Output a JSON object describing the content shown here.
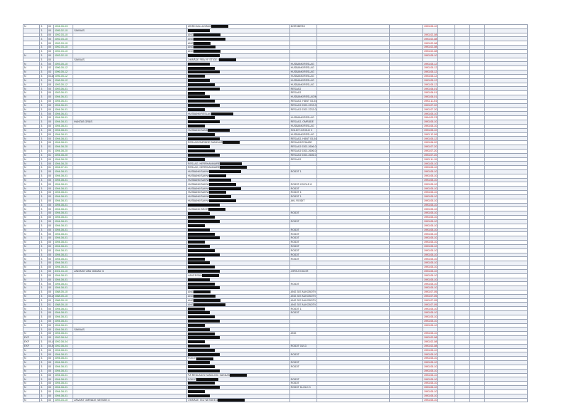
{
  "rows": [
    {
      "kind": "N",
      "ref": "3",
      "sub": "00",
      "date": "1994-05-03",
      "text": "",
      "owner": "MÖRKHÄLLA/SÄNG",
      "tail": "BORSBERG",
      "done": "1993-05-10"
    },
    {
      "kind": "",
      "ref": "3",
      "sub": "00",
      "date": "1995-02-10",
      "text": "SAKNAS",
      "owner": "",
      "tail": "",
      "done": ""
    },
    {
      "kind": "",
      "ref": "3",
      "sub": "00",
      "date": "1992-03-10",
      "text": "",
      "owner": "ANG",
      "tail": "",
      "done": "1993-02-08"
    },
    {
      "kind": "",
      "ref": "3",
      "sub": "00",
      "date": "1992-03-10",
      "text": "",
      "owner": "ANG",
      "tail": "",
      "done": "1993-02-08"
    },
    {
      "kind": "",
      "ref": "3",
      "sub": "00",
      "date": "1992-03-10",
      "text": "",
      "owner": "ANG",
      "tail": "",
      "done": "1993-02-08"
    },
    {
      "kind": "",
      "ref": "3",
      "sub": "00",
      "date": "1992-03-10",
      "text": "",
      "owner": "ANG",
      "tail": "",
      "done": "1993-02-08"
    },
    {
      "kind": "",
      "ref": "3",
      "sub": "00",
      "date": "1992-03-10",
      "text": "",
      "owner": "ANG",
      "tail": "",
      "done": "1993-02-08"
    },
    {
      "kind": "N",
      "ref": "3",
      "sub": "00",
      "date": "1993-02-10",
      "text": "",
      "owner": "",
      "tail": "",
      "done": "1993-05-10"
    },
    {
      "kind": "",
      "ref": "3",
      "sub": "00",
      "date": "",
      "text": "SAKNAS",
      "owner": "OMRÅDE FRA VF STIGE 4",
      "tail": "",
      "done": ""
    },
    {
      "kind": "N",
      "ref": "3",
      "sub": "00",
      "date": "1993-05-10",
      "text": "",
      "owner": "",
      "tail": "HUSBANK/RESLAG",
      "done": "1993-05-12"
    },
    {
      "kind": "N",
      "ref": "3",
      "sub": "03",
      "date": "1996-05-12",
      "text": "",
      "owner": "",
      "tail": "HUSBANK/RESLAG",
      "done": "1993-05-12"
    },
    {
      "kind": "N",
      "ref": "3",
      "sub": "03",
      "date": "1996-05-12",
      "text": "",
      "owner": "",
      "tail": "HUSBANK/RESLAG",
      "done": "1993-05-12"
    },
    {
      "kind": "N",
      "ref": "3",
      "sub": "03-8",
      "date": "1996-05-12",
      "text": "",
      "owner": "",
      "tail": "HUSBANK/RESLAG",
      "done": "1993-05-12"
    },
    {
      "kind": "N",
      "ref": "3",
      "sub": "04",
      "date": "1996-05-12",
      "text": "",
      "owner": "",
      "tail": "HUSBANK/RESLAG",
      "done": "1993-05-12"
    },
    {
      "kind": "N",
      "ref": "3",
      "sub": "05",
      "date": "1993-05-12",
      "text": "",
      "owner": "",
      "tail": "HUSBANK/RESLAG",
      "done": "1993-05-12"
    },
    {
      "kind": "N",
      "ref": "3",
      "sub": "00",
      "date": "1993-06-01",
      "text": "",
      "owner": "",
      "tail": "RESLAG",
      "done": "1993-06-01"
    },
    {
      "kind": "N",
      "ref": "3",
      "sub": "00",
      "date": "1993-06-01",
      "text": "",
      "owner": "",
      "tail": "RESLAG",
      "done": "1993-06-01"
    },
    {
      "kind": "N",
      "ref": "3",
      "sub": "00",
      "date": "1994-06-01",
      "text": "",
      "owner": "",
      "tail": "HUSBANK/RESLAG/MÅSTER",
      "done": "1993-06-01"
    },
    {
      "kind": "N",
      "ref": "3",
      "sub": "00",
      "date": "1994-06-01",
      "text": "",
      "owner": "",
      "tail": "RESLAG, HÄNT 03-04-08",
      "done": "1993-11-04"
    },
    {
      "kind": "N",
      "ref": "3",
      "sub": "00",
      "date": "1994-06-01",
      "text": "",
      "owner": "",
      "tail": "RESLAG 0303-2233-03-P2-1",
      "done": "1993-07-20"
    },
    {
      "kind": "N",
      "ref": "3",
      "sub": "00",
      "date": "1994-06-01",
      "text": "",
      "owner": "",
      "tail": "RESLAG 0303-2233-03-P2-1",
      "done": "1993-07-20"
    },
    {
      "kind": "N",
      "ref": "3",
      "sub": "00",
      "date": "1994-06-01",
      "text": "",
      "owner": "HUSBANK/RESLAG",
      "tail": "",
      "done": "1993-05-10"
    },
    {
      "kind": "N",
      "ref": "3",
      "sub": "00",
      "date": "1994-08-01",
      "text": "",
      "owner": "",
      "tail": "HUSBANK/RESLAG",
      "done": "1994-03-23"
    },
    {
      "kind": "N",
      "ref": "3",
      "sub": "00",
      "date": "1994-08-01",
      "text": "HANTAS GRÄS",
      "owner": "",
      "tail": "RESLAG, OMRÅDE",
      "done": "1993-05-10"
    },
    {
      "kind": "N",
      "ref": "3",
      "sub": "00",
      "date": "1994-08-01",
      "text": "",
      "owner": "",
      "tail": "HUSBANK/RESLAG",
      "done": "1993-05-10"
    },
    {
      "kind": "N",
      "ref": "3",
      "sub": "00",
      "date": "1994-08-01",
      "text": "",
      "owner": "HUSBANK/SANK",
      "tail": "SOLDIT-C/KOLD 3",
      "done": "1993-05-10"
    },
    {
      "kind": "N",
      "ref": "3",
      "sub": "00",
      "date": "1994-08-01",
      "text": "",
      "owner": "",
      "tail": "HUSBANK/RESLAG",
      "done": "1993-12-09"
    },
    {
      "kind": "N",
      "ref": "3",
      "sub": "00",
      "date": "1994-08-01",
      "text": "",
      "owner": "",
      "tail": "RESLAG, HÄNT 03-04-08",
      "done": "1993-05-12"
    },
    {
      "kind": "N",
      "ref": "3",
      "sub": "00",
      "date": "1994-08-01",
      "text": "",
      "owner": "RESLAG/OMRÅDE SANKVAR",
      "tail": "RESLAG/STANGE",
      "done": "1993-06-20"
    },
    {
      "kind": "N",
      "ref": "3",
      "sub": "01",
      "date": "1994-08-20",
      "text": "",
      "owner": "",
      "tail": "RESLAG 0303-2606-03-P2-1",
      "done": "1993-07-20"
    },
    {
      "kind": "N",
      "ref": "3",
      "sub": "01",
      "date": "1994-08-20",
      "text": "",
      "owner": "",
      "tail": "RESLAG 0303-2606-03-P2-1",
      "done": "1993-07-20"
    },
    {
      "kind": "N",
      "ref": "3",
      "sub": "01",
      "date": "1994-08-20",
      "text": "",
      "owner": "",
      "tail": "RESLAG 0303-2606-03-P2-1",
      "done": "1993-07-20"
    },
    {
      "kind": "N",
      "ref": "3",
      "sub": "00",
      "date": "1994-08-20",
      "text": "",
      "owner": "",
      "tail": "RESLAG",
      "done": "1993-11-10"
    },
    {
      "kind": "N",
      "ref": "3",
      "sub": "00",
      "date": "1994-08-20",
      "text": "",
      "owner": "RESLAG, HERRHAMMARE",
      "tail": "",
      "done": "1993-05-10"
    },
    {
      "kind": "N",
      "ref": "3",
      "sub": "01",
      "date": "1994-07-01",
      "text": "",
      "owner": "RESLAG, HERRHAMMARE",
      "tail": "",
      "done": "1993-05-10"
    },
    {
      "kind": "N",
      "ref": "3",
      "sub": "00",
      "date": "1994-08-01",
      "text": "",
      "owner": "HUSBANK/SAKNA",
      "tail": "ROIDIT 1",
      "done": "1993-05-10"
    },
    {
      "kind": "N",
      "ref": "3",
      "sub": "00",
      "date": "1994-08-01",
      "text": "",
      "owner": "HUSBANK/SAKNA",
      "tail": "",
      "done": "1993-05-10"
    },
    {
      "kind": "N",
      "ref": "3",
      "sub": "00",
      "date": "1994-08-01",
      "text": "",
      "owner": "HUSBANK/SAKNA",
      "tail": "",
      "done": "1993-05-10"
    },
    {
      "kind": "N",
      "ref": "3",
      "sub": "00",
      "date": "1994-08-01",
      "text": "",
      "owner": "HUSBANK/SAKNA",
      "tail": "ROIDIT-C/KOLD 8",
      "done": "1993-05-10"
    },
    {
      "kind": "N",
      "ref": "3",
      "sub": "00",
      "date": "1994-08-01",
      "text": "",
      "owner": "HUSBANK/SAKNA",
      "tail": "ROIDIT",
      "done": "1993-05-10"
    },
    {
      "kind": "N",
      "ref": "3",
      "sub": "00",
      "date": "1994-08-01",
      "text": "",
      "owner": "HUSBANK/SAKNA",
      "tail": "ROIDIT 1",
      "done": "1993-05-10"
    },
    {
      "kind": "N",
      "ref": "3",
      "sub": "00",
      "date": "1994-08-01",
      "text": "",
      "owner": "HUSBANK/SAKNA",
      "tail": "ROIDIT 1",
      "done": "1993-05-10"
    },
    {
      "kind": "N",
      "ref": "3",
      "sub": "00",
      "date": "1994-08-01",
      "text": "",
      "owner": "HUSBANK/SAKNA",
      "tail": "AKL ROIDIT",
      "done": "1993-05-10"
    },
    {
      "kind": "N",
      "ref": "3",
      "sub": "00",
      "date": "1994-08-01",
      "text": "",
      "owner": "",
      "tail": "",
      "done": "1993-05-10"
    },
    {
      "kind": "N",
      "ref": "3",
      "sub": "00",
      "date": "1994-08-01",
      "text": "",
      "owner": "HUSBANK BROR",
      "tail": "",
      "done": "1993-05-10"
    },
    {
      "kind": "N",
      "ref": "3",
      "sub": "00",
      "date": "1994-08-01",
      "text": "",
      "owner": "",
      "tail": "ROIDIT",
      "done": "1993-05-10"
    },
    {
      "kind": "N",
      "ref": "3",
      "sub": "00",
      "date": "1994-08-01",
      "text": "",
      "owner": "",
      "tail": "",
      "done": "1993-05-10"
    },
    {
      "kind": "N",
      "ref": "3",
      "sub": "00",
      "date": "1994-08-01",
      "text": "",
      "owner": "",
      "tail": "ROIDIT",
      "done": "1993-05-10"
    },
    {
      "kind": "N",
      "ref": "3",
      "sub": "00",
      "date": "1994-08-01",
      "text": "",
      "owner": "",
      "tail": "",
      "done": "1993-05-10"
    },
    {
      "kind": "N",
      "ref": "3",
      "sub": "00",
      "date": "1994-08-01",
      "text": "",
      "owner": "",
      "tail": "ROIDIT",
      "done": "1993-05-10"
    },
    {
      "kind": "N",
      "ref": "3",
      "sub": "00",
      "date": "1994-08-01",
      "text": "",
      "owner": "",
      "tail": "ROIDIT",
      "done": "1993-05-10"
    },
    {
      "kind": "N",
      "ref": "3",
      "sub": "00",
      "date": "1994-08-01",
      "text": "",
      "owner": "",
      "tail": "ROIDIT",
      "done": "1993-05-10"
    },
    {
      "kind": "N",
      "ref": "3",
      "sub": "00",
      "date": "1994-08-01",
      "text": "",
      "owner": "",
      "tail": "ROIDIT",
      "done": "1993-05-10"
    },
    {
      "kind": "N",
      "ref": "3",
      "sub": "00",
      "date": "1994-08-01",
      "text": "",
      "owner": "",
      "tail": "ROIDIT",
      "done": "1993-05-10"
    },
    {
      "kind": "N",
      "ref": "3",
      "sub": "00",
      "date": "1994-08-01",
      "text": "",
      "owner": "",
      "tail": "ROIDIT",
      "done": "1993-05-10"
    },
    {
      "kind": "N",
      "ref": "3",
      "sub": "00",
      "date": "1994-08-01",
      "text": "",
      "owner": "",
      "tail": "ROIDIT",
      "done": "1993-05-10"
    },
    {
      "kind": "N",
      "ref": "3",
      "sub": "00",
      "date": "1994-08-01",
      "text": "",
      "owner": "",
      "tail": "ROIDIT",
      "done": "1993-05-10"
    },
    {
      "kind": "N",
      "ref": "3",
      "sub": "00",
      "date": "1994-08-01",
      "text": "",
      "owner": "",
      "tail": "",
      "done": "1993-05-10"
    },
    {
      "kind": "N",
      "ref": "3",
      "sub": "00",
      "date": "1994-08-01",
      "text": "",
      "owner": "",
      "tail": "",
      "done": "1993-05-10"
    },
    {
      "kind": "N",
      "ref": "3",
      "sub": "00",
      "date": "2001-04-10",
      "text": "ANDRÄG VÅN NOMAK N",
      "owner": "",
      "tail": "JÖRSJ KOLDR",
      "done": "1993-05-10"
    },
    {
      "kind": "N",
      "ref": "3",
      "sub": "00",
      "date": "1994-08-01",
      "text": "",
      "owner": "HÄVERSÅN",
      "tail": "",
      "done": "1993-05-10"
    },
    {
      "kind": "N",
      "ref": "3",
      "sub": "00",
      "date": "1994-08-01",
      "text": "",
      "owner": "",
      "tail": "",
      "done": "1993-05-10"
    },
    {
      "kind": "N",
      "ref": "3",
      "sub": "00",
      "date": "1994-08-01",
      "text": "",
      "owner": "",
      "tail": "ROIDIT",
      "done": "1993-05-10"
    },
    {
      "kind": "N",
      "ref": "3",
      "sub": "00",
      "date": "1994-08-01",
      "text": "",
      "owner": "",
      "tail": "",
      "done": "1993-05-10"
    },
    {
      "kind": "N",
      "ref": "3",
      "sub": "00",
      "date": "1988-05-10",
      "text": "",
      "owner": "ANG",
      "tail": "ANG 357 AUKOBOTV",
      "done": "1993-07-05"
    },
    {
      "kind": "N",
      "ref": "3",
      "sub": "00-A",
      "date": "1988-05-10",
      "text": "",
      "owner": "ANG",
      "tail": "ANG 357 AUKOBOTV",
      "done": "1993-07-05"
    },
    {
      "kind": "N",
      "ref": "3",
      "sub": "00",
      "date": "1988-05-10",
      "text": "",
      "owner": "ANG",
      "tail": "ANG 357 AUKOBOTV",
      "done": "1993-07-05"
    },
    {
      "kind": "N",
      "ref": "3",
      "sub": "01",
      "date": "1988-05-10",
      "text": "",
      "owner": "ANG",
      "tail": "ANG 357 AUKOBOTV",
      "done": "1993-07-05"
    },
    {
      "kind": "N",
      "ref": "3",
      "sub": "00",
      "date": "1994-08-01",
      "text": "",
      "owner": "",
      "tail": "ROIDIT 1",
      "done": "1993-05-10"
    },
    {
      "kind": "N",
      "ref": "3",
      "sub": "00",
      "date": "1994-08-01",
      "text": "",
      "owner": "",
      "tail": "ROIDIT",
      "done": "1993-05-10"
    },
    {
      "kind": "N",
      "ref": "3",
      "sub": "00",
      "date": "1994-08-01",
      "text": "",
      "owner": "",
      "tail": "",
      "done": "1993-05-10"
    },
    {
      "kind": "N",
      "ref": "3",
      "sub": "00",
      "date": "1994-08-01",
      "text": "",
      "owner": "",
      "tail": "",
      "done": "1993-05-10"
    },
    {
      "kind": "N",
      "ref": "3",
      "sub": "00",
      "date": "1994-08-01",
      "text": "",
      "owner": "",
      "tail": "",
      "done": "1993-05-10"
    },
    {
      "kind": "",
      "ref": "3",
      "sub": "00",
      "date": "1994-08-01",
      "text": "SAKNAS",
      "owner": "",
      "tail": "",
      "done": ""
    },
    {
      "kind": "N",
      "ref": "3",
      "sub": "00",
      "date": "1994-08-01",
      "text": "",
      "owner": "",
      "tail": "ANG",
      "done": "1993-05-10"
    },
    {
      "kind": "EXF",
      "ref": "3",
      "sub": "00",
      "date": "1992-08-04",
      "text": "",
      "owner": "",
      "tail": "",
      "done": "1993-02-08"
    },
    {
      "kind": "EXF",
      "ref": "3",
      "sub": "00-A",
      "date": "1992-08-04",
      "text": "",
      "owner": "",
      "tail": "",
      "done": "1993-02-08"
    },
    {
      "kind": "EXF",
      "ref": "3",
      "sub": "00-B",
      "date": "1992-08-04",
      "text": "",
      "owner": "",
      "tail": "ROIDIT 03/13",
      "done": "1993-02-08"
    },
    {
      "kind": "N",
      "ref": "3",
      "sub": "00",
      "date": "1994-08-01",
      "text": "",
      "owner": "",
      "tail": "",
      "done": "1993-05-10"
    },
    {
      "kind": "N",
      "ref": "3",
      "sub": "00",
      "date": "1994-08-01",
      "text": "",
      "owner": "",
      "tail": "ROIDIT",
      "done": "1993-05-10"
    },
    {
      "kind": "N",
      "ref": "3",
      "sub": "00",
      "date": "1994-08-01",
      "text": "",
      "owner": "ROIDIT",
      "tail": "",
      "done": "1993-05-10"
    },
    {
      "kind": "N",
      "ref": "3",
      "sub": "00",
      "date": "1994-08-01",
      "text": "",
      "owner": "",
      "tail": "ROIDIT",
      "done": "1993-05-10"
    },
    {
      "kind": "N",
      "ref": "3",
      "sub": "00",
      "date": "1994-08-01",
      "text": "",
      "owner": "",
      "tail": "ROIDIT",
      "done": "1993-05-10"
    },
    {
      "kind": "N",
      "ref": "3",
      "sub": "00",
      "date": "1994-08-01",
      "text": "",
      "owner": "",
      "tail": "",
      "done": "1993-05-10"
    },
    {
      "kind": "N",
      "ref": "3",
      "sub": "00",
      "date": "1994-08-01",
      "text": "",
      "owner": "PÅ RESLAG/N HANDLING SAKNAS",
      "tail": "",
      "done": "1993-05-10"
    },
    {
      "kind": "N",
      "ref": "3",
      "sub": "00",
      "date": "1994-08-01",
      "text": "",
      "owner": "ROIDIT",
      "tail": "ROIDIT",
      "done": "1993-05-10"
    },
    {
      "kind": "N",
      "ref": "3",
      "sub": "00",
      "date": "1994-08-01",
      "text": "",
      "owner": "",
      "tail": "ROIDIT",
      "done": "1993-05-10"
    },
    {
      "kind": "N",
      "ref": "3",
      "sub": "00",
      "date": "1994-08-01",
      "text": "",
      "owner": "",
      "tail": "ROIDIT KLOLD 3",
      "done": "1993-05-10"
    },
    {
      "kind": "N",
      "ref": "3",
      "sub": "00",
      "date": "1994-08-01",
      "text": "",
      "owner": "",
      "tail": "",
      "done": "1993-05-10"
    },
    {
      "kind": "N",
      "ref": "3",
      "sub": "00",
      "date": "1994-08-01",
      "text": "",
      "owner": "",
      "tail": "",
      "done": "1993-05-10"
    },
    {
      "kind": "N",
      "ref": "3",
      "sub": "00",
      "date": "1993-04-10",
      "text": "ANVANT OMRÅDE NESSEB 4",
      "owner": "OMRÅDE SNJ NESSEB 4",
      "tail": "",
      "done": "1993-05-10"
    }
  ],
  "redacted": "redaction-block"
}
